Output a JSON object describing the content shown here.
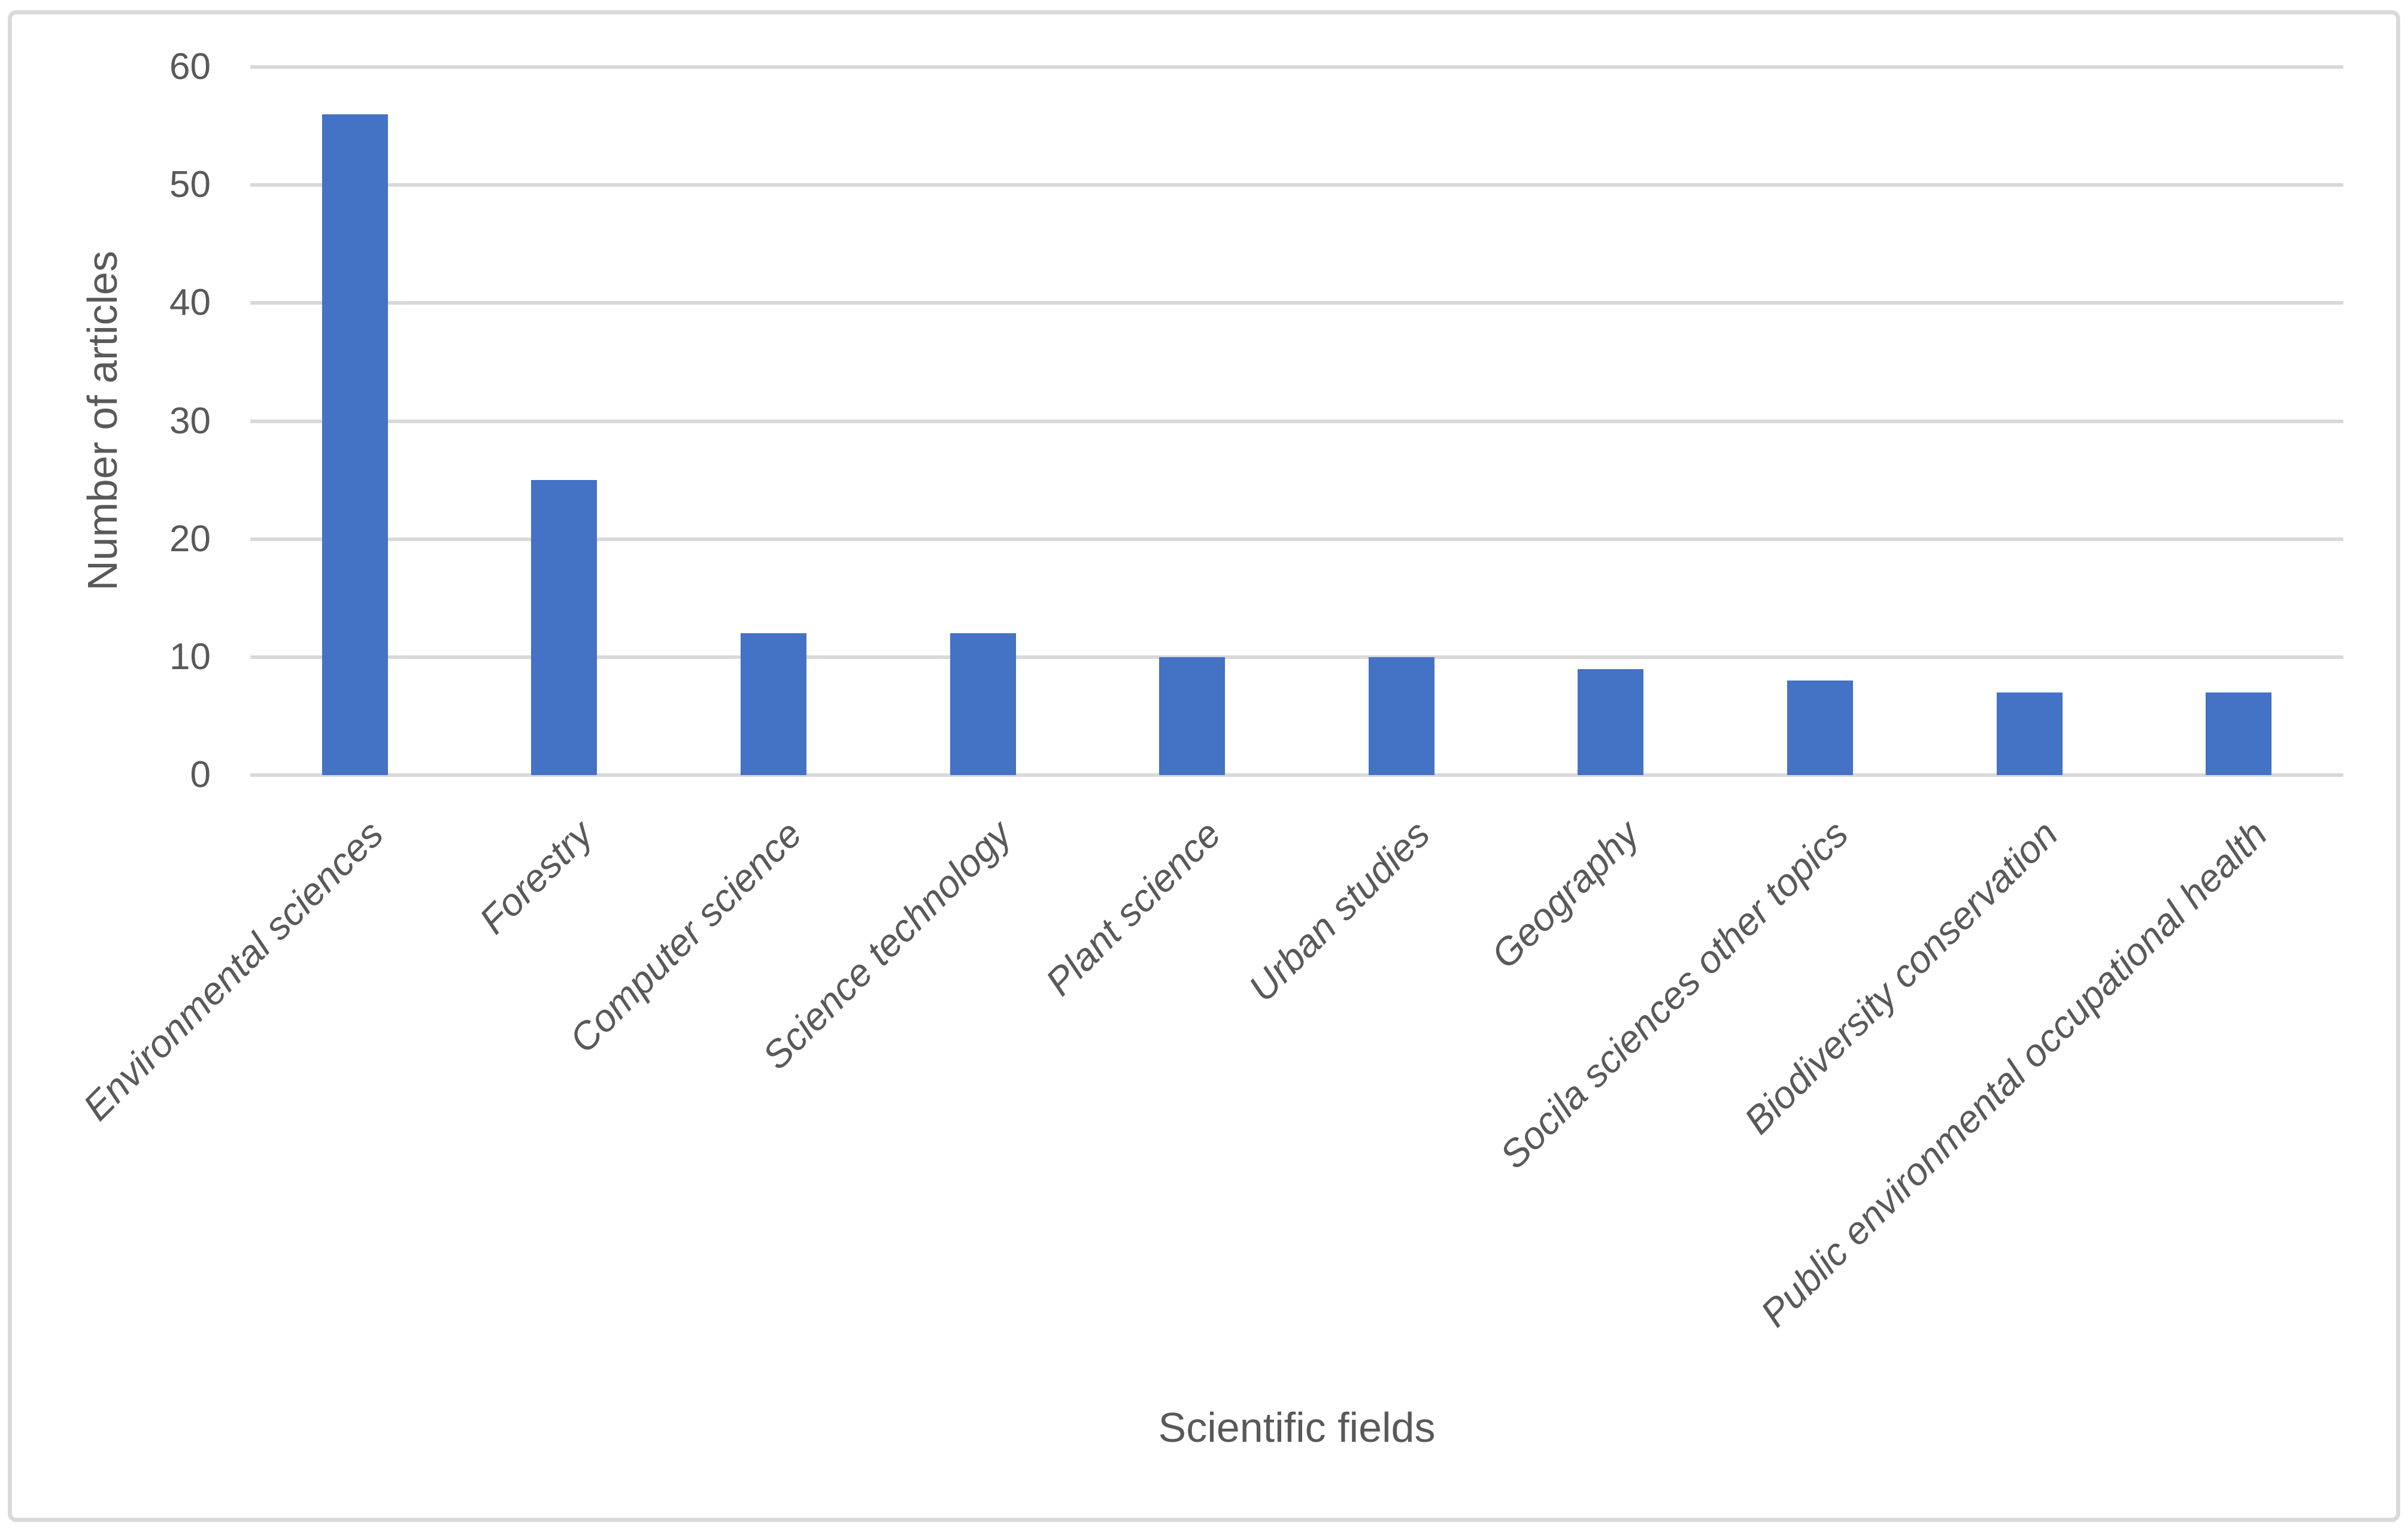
{
  "chart_data": {
    "type": "bar",
    "title": "",
    "categories": [
      "Environmental sciences",
      "Forestry",
      "Computer science",
      "Science technology",
      "Plant science",
      "Urban studies",
      "Geography",
      "Socila sciences other topics",
      "Biodiversity conservation",
      "Public environmental occupational health"
    ],
    "values": [
      56,
      25,
      12,
      12,
      10,
      10,
      9,
      8,
      7,
      7
    ],
    "xlabel": "Scientific fields",
    "ylabel": "Number of articles",
    "ylim": [
      0,
      60
    ],
    "yticks": [
      0,
      10,
      20,
      30,
      40,
      50,
      60
    ],
    "grid": "horizontal-only",
    "legend_position": "none",
    "bar_color": "#4472C4",
    "gridline_color": "#D9D9D9",
    "border_color": "#D9D9D9",
    "axis_text_color": "#595959"
  }
}
